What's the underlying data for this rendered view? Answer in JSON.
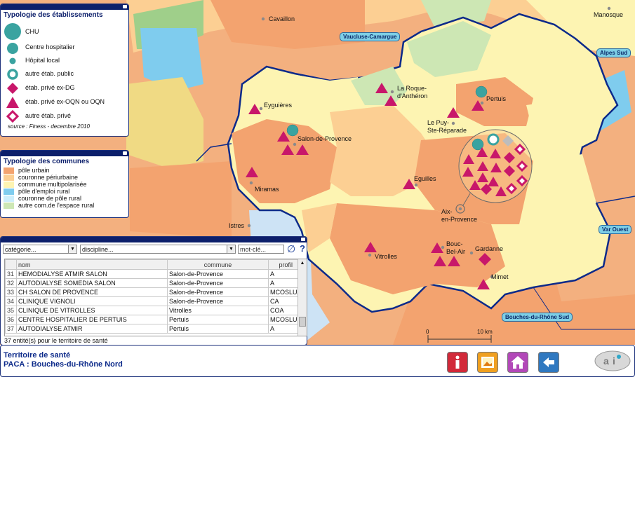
{
  "legend_etab": {
    "title": "Typologie des établissements",
    "items": [
      "CHU",
      "Centre hospitalier",
      "Hôpital local",
      "autre étab. public",
      "étab. privé ex-DG",
      "étab. privé ex-OQN ou OQN",
      "autre étab. privé"
    ],
    "source": "source : Finess - decembre 2010"
  },
  "legend_communes": {
    "title": "Typologie des communes",
    "items": [
      {
        "label": "pôle urbain",
        "color": "#f3a36f"
      },
      {
        "label": "couronne périurbaine",
        "color": "#fccf93"
      },
      {
        "label": "commune multipolarisée",
        "color": "#fdf4b2"
      },
      {
        "label": "pôle d'emploi rural",
        "color": "#7fccee"
      },
      {
        "label": "couronne de pôle rural",
        "color": "#cdeefb"
      },
      {
        "label": "autre com.de l'espace rural",
        "color": "#cde7b4"
      }
    ]
  },
  "map": {
    "places": [
      "Cavaillon",
      "Manosque",
      "La Roque-",
      "d'Anthéron",
      "Pertuis",
      "Eyguières",
      "Le Puy-",
      "Ste-Réparade",
      "Salon-de-Provence",
      "Eguilles",
      "Miramas",
      "Aix-",
      "en-Provence",
      "Istres",
      "Vitrolles",
      "Bouc-",
      "Bel-Air",
      "Gardanne",
      "Mimet"
    ],
    "badges": [
      "Vaucluse-Camargue",
      "Alpes Sud",
      "Var Ouest",
      "Bouches-du-Rhône Sud"
    ],
    "scale": {
      "start": "0",
      "end": "10 km"
    }
  },
  "table": {
    "filters": {
      "categorie": "catégorie...",
      "discipline": "discipline...",
      "keyword": "mot-clé..."
    },
    "columns": [
      "nom",
      "commune",
      "profil"
    ],
    "rows": [
      {
        "num": "31",
        "nom": "HEMODIALYSE ATMIR SALON",
        "commune": "Salon-de-Provence",
        "profil": "A"
      },
      {
        "num": "32",
        "nom": "AUTODIALYSE SOMEDIA SALON",
        "commune": "Salon-de-Provence",
        "profil": "A"
      },
      {
        "num": "33",
        "nom": "CH SALON DE PROVENCE",
        "commune": "Salon-de-Provence",
        "profil": "MCOSLUA"
      },
      {
        "num": "34",
        "nom": "CLINIQUE VIGNOLI",
        "commune": "Salon-de-Provence",
        "profil": "CA"
      },
      {
        "num": "35",
        "nom": "CLINIQUE DE VITROLLES",
        "commune": "Vitrolles",
        "profil": "COA"
      },
      {
        "num": "36",
        "nom": "CENTRE HOSPITALIER DE PERTUIS",
        "commune": "Pertuis",
        "profil": "MCOSLU"
      },
      {
        "num": "37",
        "nom": "AUTODIALYSE ATMIR",
        "commune": "Pertuis",
        "profil": "A"
      }
    ],
    "status": "37 entité(s) pour le territoire de santé"
  },
  "footer": {
    "line1": "Territoire de santé",
    "line2": "PACA : Bouches-du-Rhône Nord"
  },
  "colors": {
    "chu": "#3aa3a0",
    "prive": "#c8176a",
    "border": "#0c1f6b"
  }
}
